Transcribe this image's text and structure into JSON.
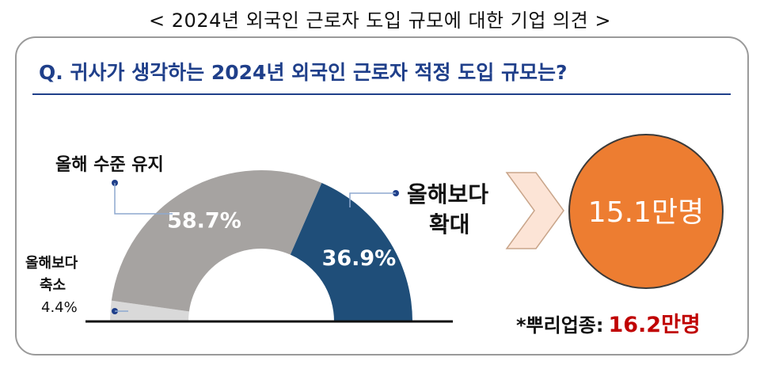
{
  "title": "< 2024년 외국인 근로자 도입 규모에 대한 기업 의견 >",
  "question": "Q. 귀사가 생각하는 2024년 외국인 근로자 적정 도입 규모는?",
  "chart_data": {
    "type": "pie",
    "subtype": "half-donut",
    "series": [
      {
        "name": "올해보다 축소",
        "value": 4.4,
        "label": "4.4%",
        "color": "#d9d9d9"
      },
      {
        "name": "올해 수준 유지",
        "value": 58.7,
        "label": "58.7%",
        "color": "#a6a3a1"
      },
      {
        "name": "올해보다 확대",
        "value": 36.9,
        "label": "36.9%",
        "color": "#1f4e79"
      }
    ]
  },
  "labels": {
    "maintain": "올해 수준 유지",
    "decrease_line1": "올해보다",
    "decrease_line2": "축소",
    "decrease_pct": "4.4%",
    "increase_line1": "올해보다",
    "increase_line2": "확대"
  },
  "circle_value": "15.1만명",
  "note_label": "*뿌리업종:",
  "note_value": "16.2만명",
  "colors": {
    "accent_blue": "#1f3f8a",
    "orange": "#ed7d31",
    "red": "#c00000",
    "arrow_fill": "#fce4d6",
    "arrow_stroke": "#c9a58a"
  }
}
